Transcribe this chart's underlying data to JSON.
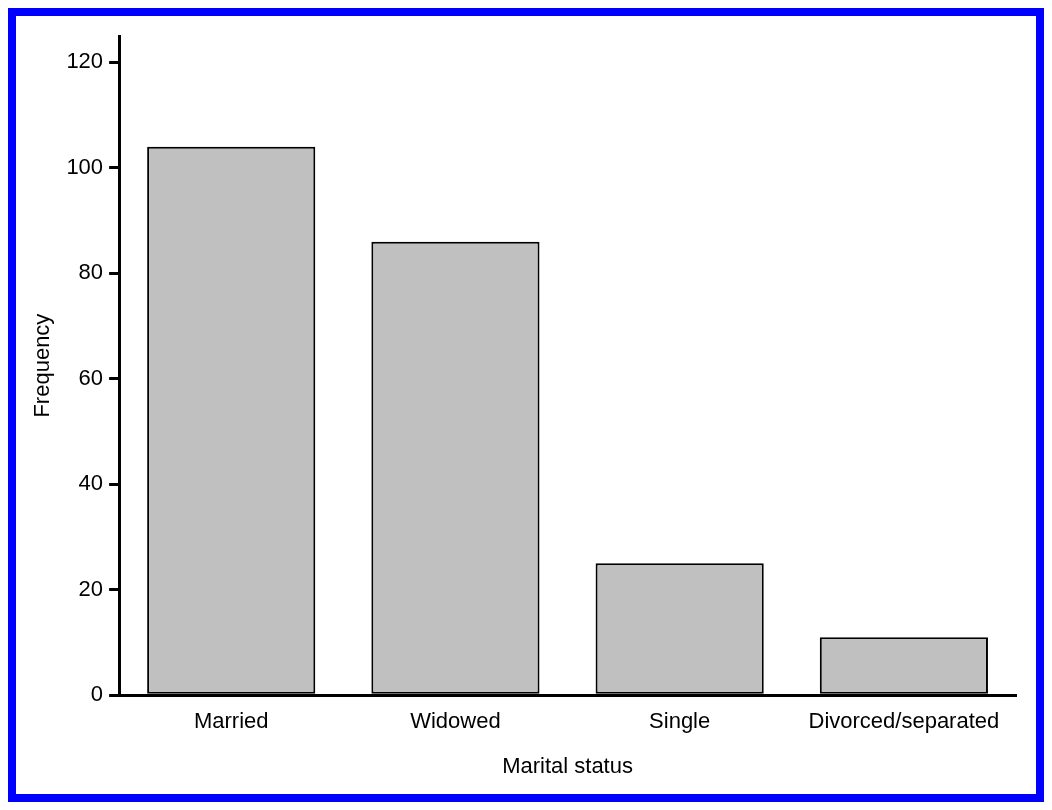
{
  "chart_data": {
    "type": "bar",
    "xlabel": "Marital status",
    "ylabel": "Frequency",
    "categories": [
      "Married",
      "Widowed",
      "Single",
      "Divorced/separated"
    ],
    "values": [
      104,
      86,
      25,
      11
    ],
    "color": "#c0c0c0",
    "ylim": [
      0,
      125
    ],
    "yticks": [
      0,
      20,
      40,
      60,
      80,
      100,
      120
    ],
    "grid": false,
    "legend": false
  }
}
